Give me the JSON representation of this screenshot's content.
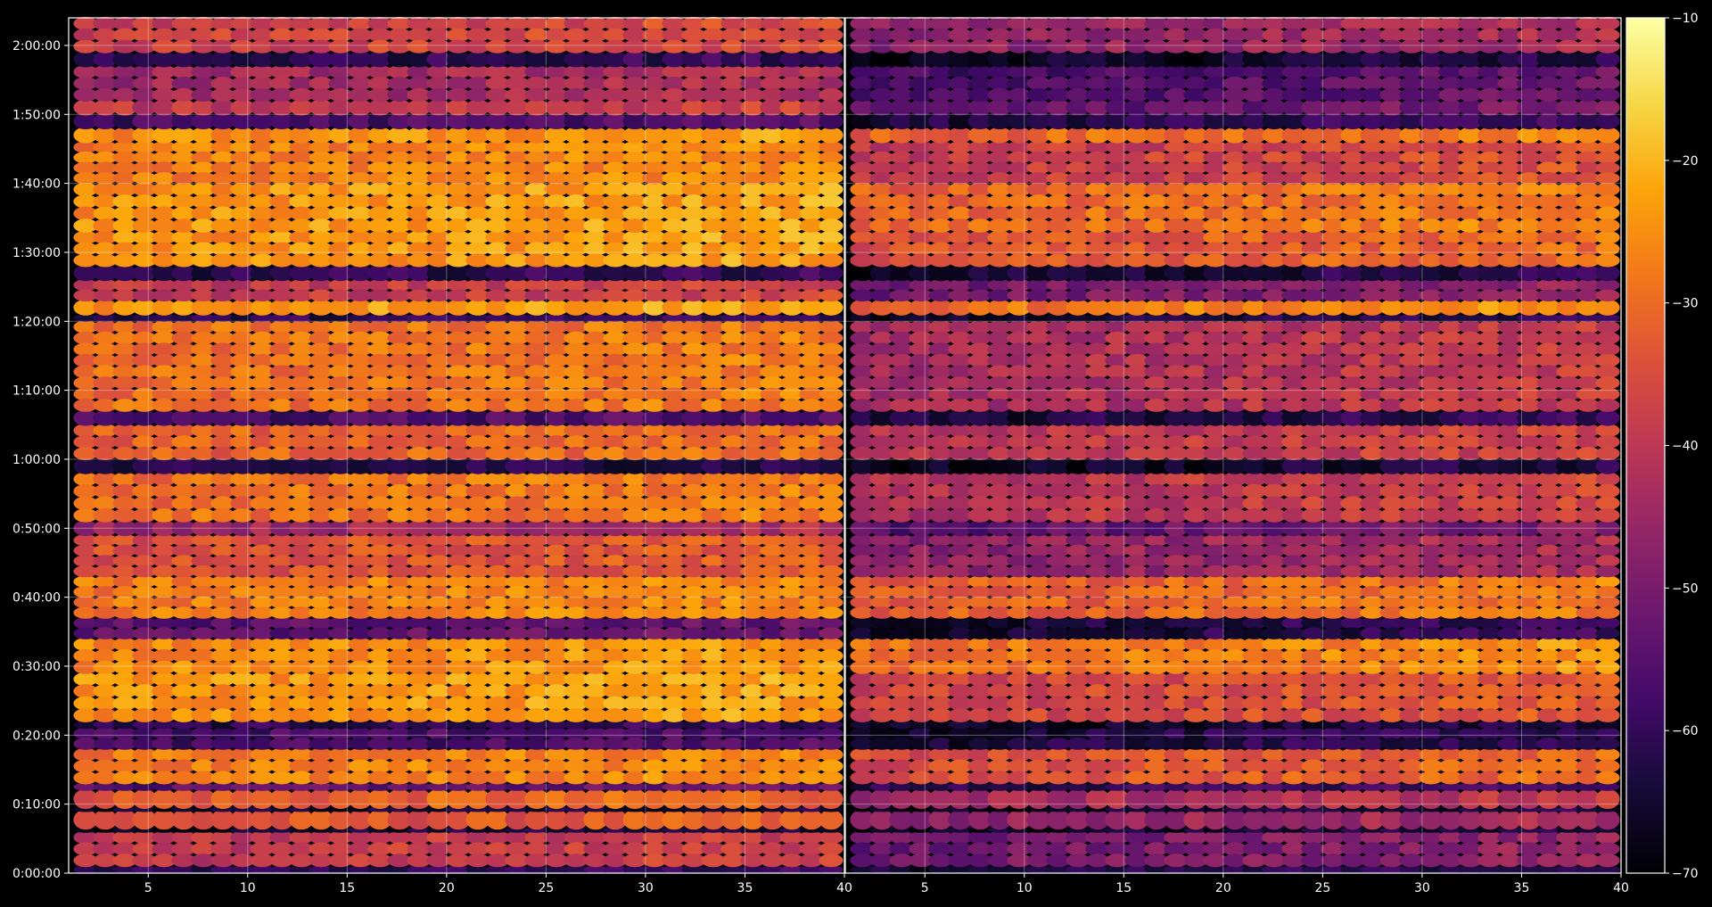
{
  "chart_data": {
    "type": "heatmap",
    "panels": [
      {
        "name": "",
        "x_range": [
          1,
          40
        ]
      },
      {
        "name": "",
        "x_range": [
          1,
          40
        ]
      }
    ],
    "x_ticks": [
      "5",
      "10",
      "15",
      "20",
      "25",
      "30",
      "35",
      "40"
    ],
    "x_tick_values": [
      5,
      10,
      15,
      20,
      25,
      30,
      35,
      40
    ],
    "y_ticks": [
      "0:00:00",
      "0:10:00",
      "0:20:00",
      "0:30:00",
      "0:40:00",
      "0:50:00",
      "1:00:00",
      "1:10:00",
      "1:20:00",
      "1:30:00",
      "1:40:00",
      "1:50:00",
      "2:00:00"
    ],
    "y_tick_values_min": [
      0,
      10,
      20,
      30,
      40,
      50,
      60,
      70,
      80,
      90,
      100,
      110,
      120
    ],
    "y_range_min": [
      0,
      124
    ],
    "colorbar": {
      "colormap": "inferno",
      "ticks": [
        "−70",
        "−60",
        "−50",
        "−40",
        "−30",
        "−20",
        "−10"
      ],
      "tick_values": [
        -70,
        -60,
        -50,
        -40,
        -30,
        -20,
        -10
      ],
      "range": [
        -70,
        -10
      ]
    },
    "level_bands_min": [
      {
        "y_start": 0,
        "y_end": 1,
        "left": -62,
        "right": -65
      },
      {
        "y_start": 1,
        "y_end": 6,
        "left": -40,
        "right": -52
      },
      {
        "y_start": 6,
        "y_end": 6.5,
        "left": -66,
        "right": -68
      },
      {
        "y_start": 6.5,
        "y_end": 9,
        "left": -35,
        "right": -48
      },
      {
        "y_start": 9,
        "y_end": 9.5,
        "left": -66,
        "right": -68
      },
      {
        "y_start": 9.5,
        "y_end": 12,
        "left": -33,
        "right": -45
      },
      {
        "y_start": 12,
        "y_end": 13,
        "left": -55,
        "right": -62
      },
      {
        "y_start": 13,
        "y_end": 18,
        "left": -28,
        "right": -36
      },
      {
        "y_start": 18,
        "y_end": 21,
        "left": -58,
        "right": -65
      },
      {
        "y_start": 21,
        "y_end": 22,
        "left": -62,
        "right": -68
      },
      {
        "y_start": 22,
        "y_end": 29,
        "left": -25,
        "right": -38
      },
      {
        "y_start": 29,
        "y_end": 34,
        "left": -26,
        "right": -30
      },
      {
        "y_start": 34,
        "y_end": 37,
        "left": -55,
        "right": -65
      },
      {
        "y_start": 37,
        "y_end": 43,
        "left": -28,
        "right": -33
      },
      {
        "y_start": 43,
        "y_end": 49,
        "left": -35,
        "right": -48
      },
      {
        "y_start": 49,
        "y_end": 51,
        "left": -45,
        "right": -55
      },
      {
        "y_start": 51,
        "y_end": 58,
        "left": -30,
        "right": -42
      },
      {
        "y_start": 58,
        "y_end": 60,
        "left": -64,
        "right": -68
      },
      {
        "y_start": 60,
        "y_end": 65,
        "left": -32,
        "right": -42
      },
      {
        "y_start": 65,
        "y_end": 67,
        "left": -58,
        "right": -65
      },
      {
        "y_start": 67,
        "y_end": 80,
        "left": -30,
        "right": -44
      },
      {
        "y_start": 80,
        "y_end": 81,
        "left": -62,
        "right": -66
      },
      {
        "y_start": 81,
        "y_end": 83,
        "left": -24,
        "right": -30
      },
      {
        "y_start": 83,
        "y_end": 86,
        "left": -40,
        "right": -52
      },
      {
        "y_start": 86,
        "y_end": 88,
        "left": -62,
        "right": -66
      },
      {
        "y_start": 88,
        "y_end": 93,
        "left": -25,
        "right": -35
      },
      {
        "y_start": 93,
        "y_end": 100,
        "left": -25,
        "right": -32
      },
      {
        "y_start": 100,
        "y_end": 106,
        "left": -28,
        "right": -40
      },
      {
        "y_start": 106,
        "y_end": 108,
        "left": -26,
        "right": -32
      },
      {
        "y_start": 108,
        "y_end": 110,
        "left": -58,
        "right": -64
      },
      {
        "y_start": 110,
        "y_end": 112,
        "left": -40,
        "right": -55
      },
      {
        "y_start": 112,
        "y_end": 117,
        "left": -45,
        "right": -58
      },
      {
        "y_start": 117,
        "y_end": 119,
        "left": -62,
        "right": -68
      },
      {
        "y_start": 119,
        "y_end": 124,
        "left": -38,
        "right": -48
      }
    ]
  }
}
